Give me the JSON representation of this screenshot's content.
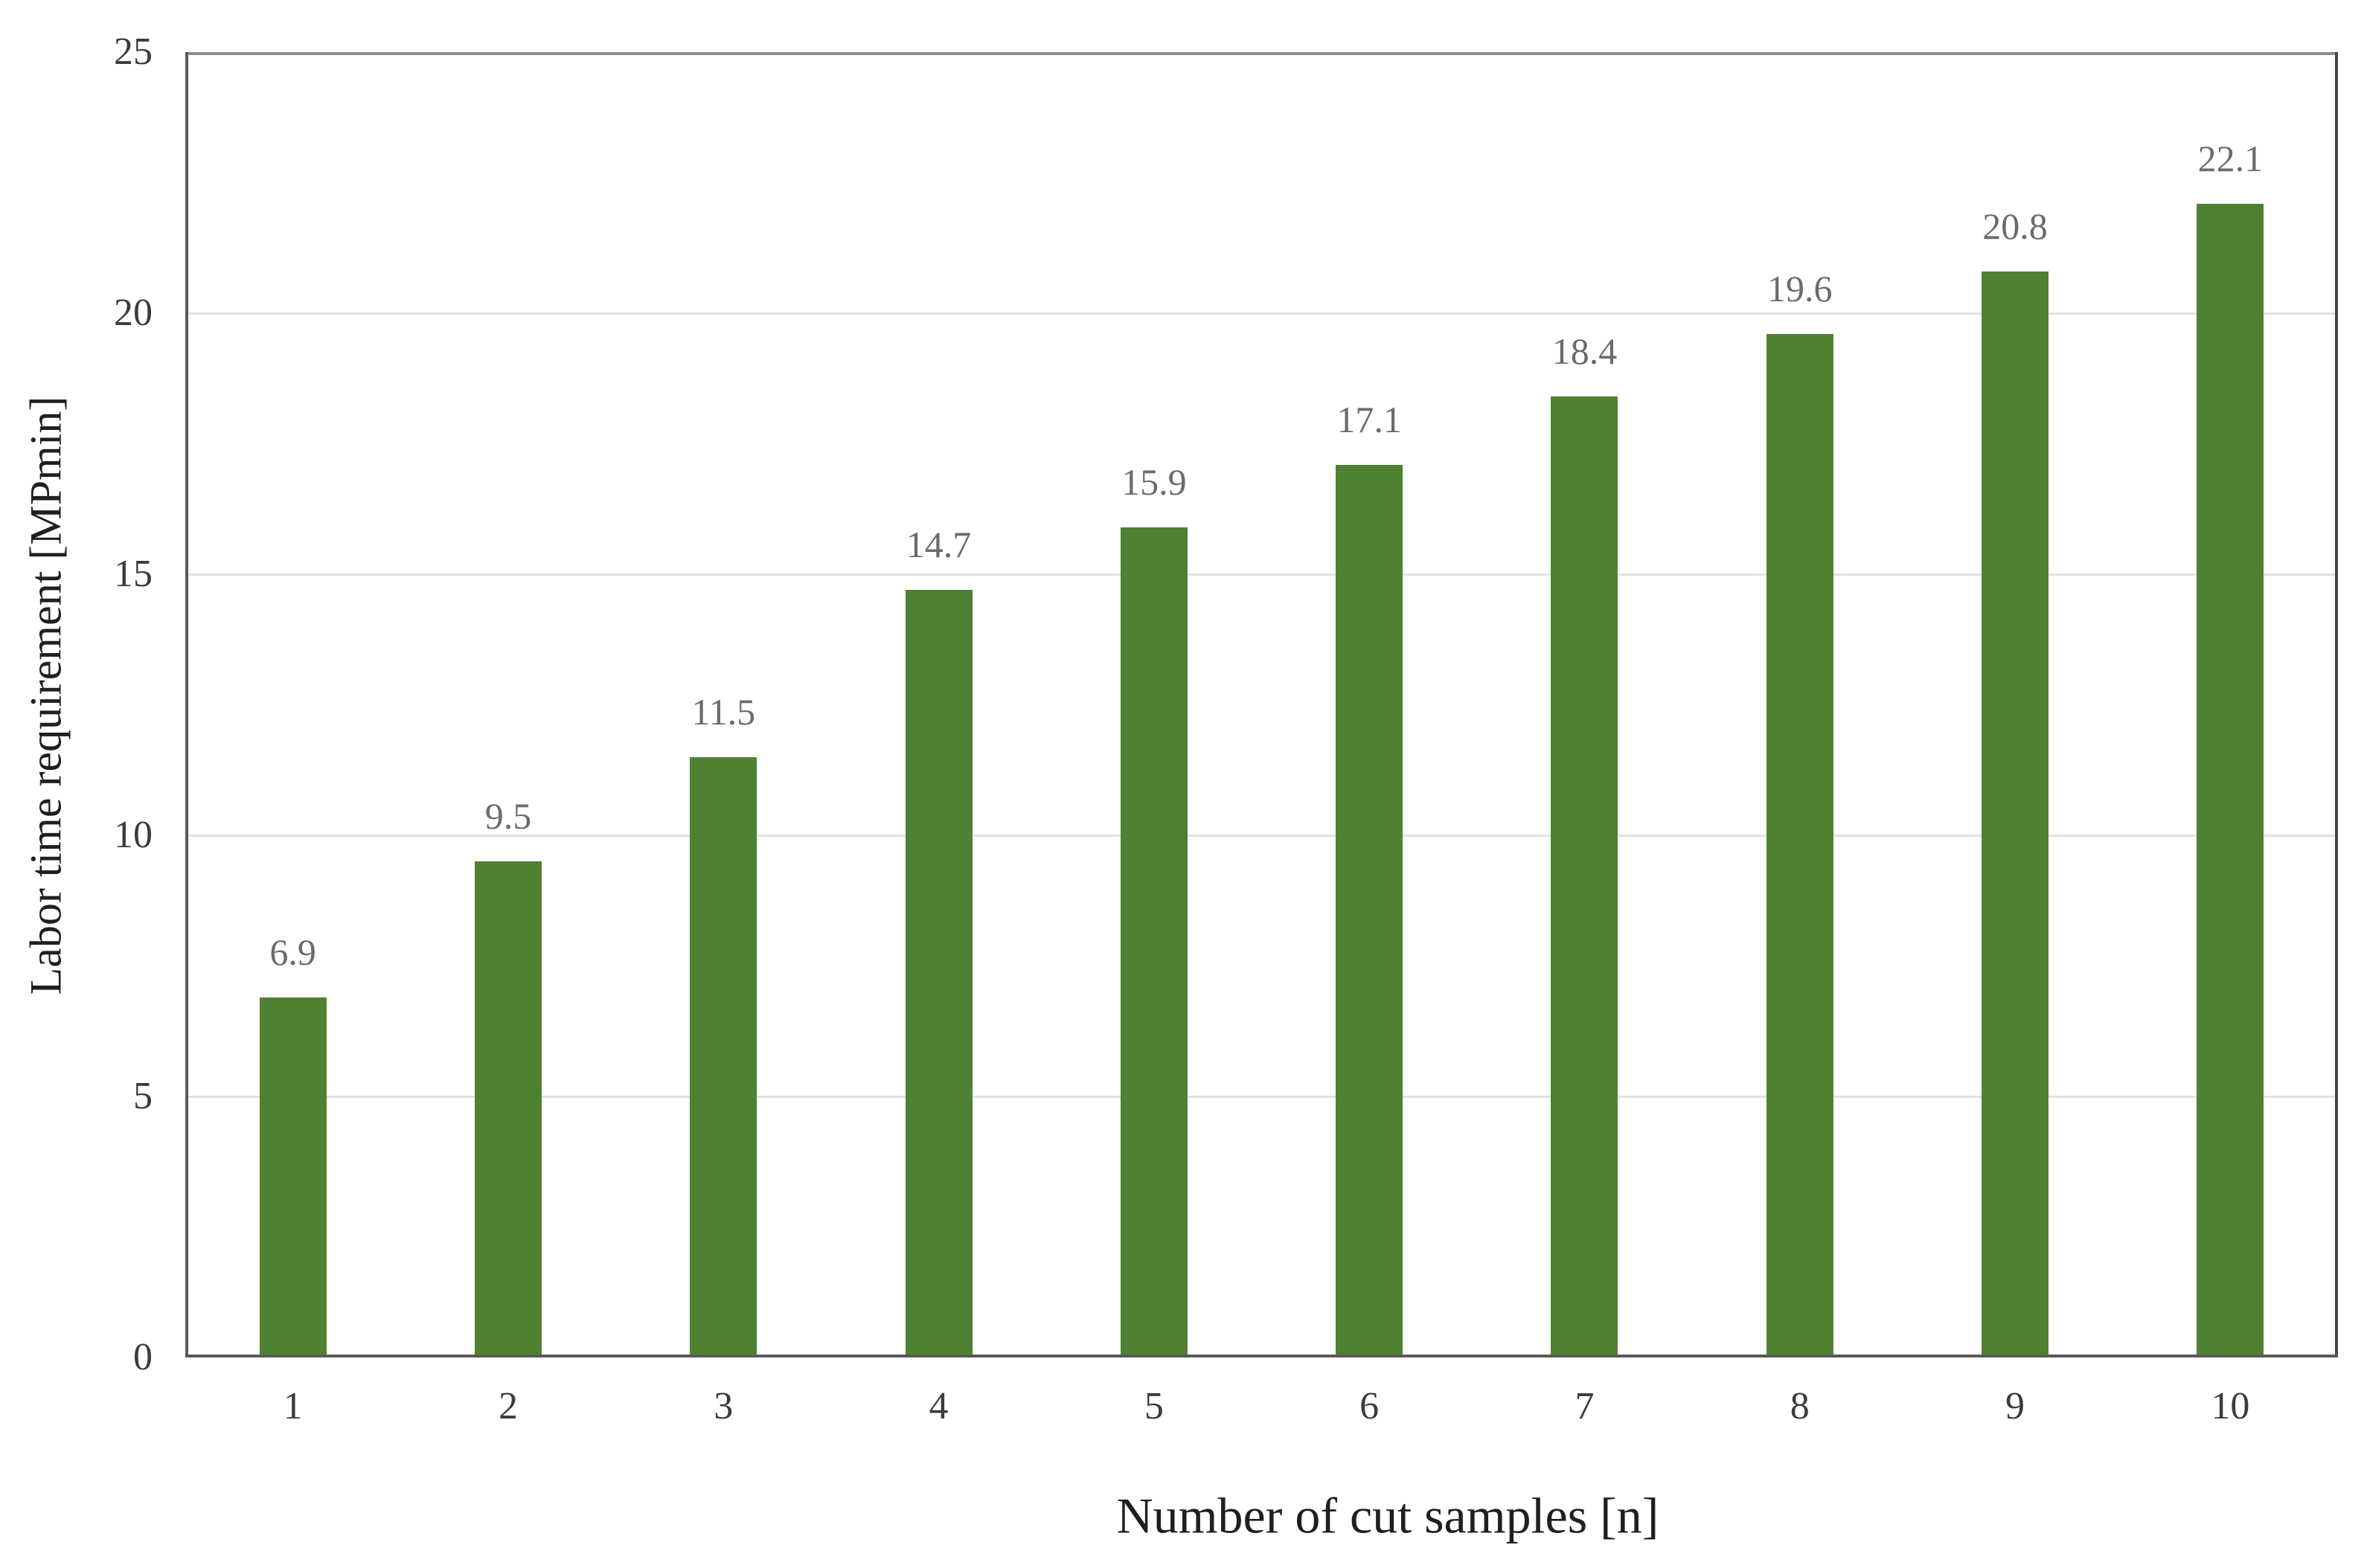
{
  "figure": {
    "background": "#ffffff"
  },
  "chart_data": {
    "type": "bar",
    "title": "",
    "xlabel": "Number of cut samples [n]",
    "ylabel": "Labor time requirement [MPmin]",
    "categories": [
      "1",
      "2",
      "3",
      "4",
      "5",
      "6",
      "7",
      "8",
      "9",
      "10"
    ],
    "values": [
      6.9,
      9.5,
      11.5,
      14.7,
      15.9,
      17.1,
      18.4,
      19.6,
      20.8,
      22.1
    ],
    "data_labels": [
      "6.9",
      "9.5",
      "11.5",
      "14.7",
      "15.9",
      "17.1",
      "18.4",
      "19.6",
      "20.8",
      "22.1"
    ],
    "ylim": [
      0,
      25
    ],
    "ytick_interval": 5,
    "yticks": [
      "0",
      "5",
      "10",
      "15",
      "20",
      "25"
    ],
    "grid": "horizontal-only",
    "legend": "none",
    "colors": {
      "bar": "#4f8132",
      "gridline": "#e2e2e2",
      "axis_line": "#595959",
      "plot_border_top": "#8c8c8c",
      "plot_border_right": "#474747",
      "tick_label": "#3b3b3b",
      "data_label": "#6b6b6b",
      "axis_title": "#1f1f1f"
    }
  }
}
